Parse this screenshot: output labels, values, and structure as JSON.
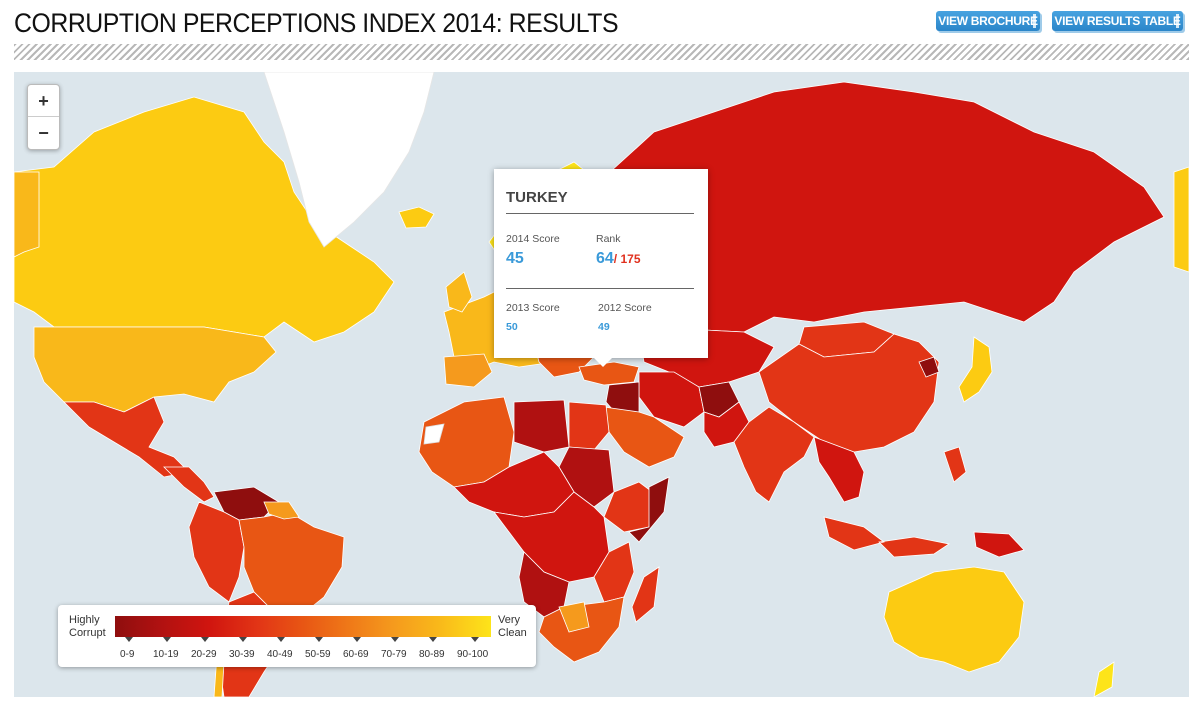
{
  "header": {
    "title": "CORRUPTION PERCEPTIONS INDEX 2014: RESULTS",
    "brochure_button": "VIEW BROCHURE",
    "results_table_button": "VIEW RESULTS TABLE"
  },
  "zoom": {
    "in_label": "+",
    "out_label": "−"
  },
  "popup": {
    "country": "TURKEY",
    "score_2014_label": "2014 Score",
    "score_2014": "45",
    "rank_label": "Rank",
    "rank": "64",
    "rank_total": "/ 175",
    "score_2013_label": "2013 Score",
    "score_2013": "50",
    "score_2012_label": "2012 Score",
    "score_2012": "49"
  },
  "legend": {
    "left_label_1": "Highly",
    "left_label_2": "Corrupt",
    "right_label_1": "Very",
    "right_label_2": "Clean",
    "ranges": [
      "0-9",
      "10-19",
      "20-29",
      "30-39",
      "40-49",
      "50-59",
      "60-69",
      "70-79",
      "80-89",
      "90-100"
    ]
  },
  "colors": {
    "ocean": "#dce6ec",
    "greenland": "#ffffff",
    "band_0_9": "#8f0e0e",
    "band_10_19": "#b01111",
    "band_20_29": "#d0150f",
    "band_30_39": "#e23516",
    "band_40_49": "#e85614",
    "band_50_59": "#ef7818",
    "band_60_69": "#f59a1d",
    "band_70_79": "#f9b81a",
    "band_80_89": "#fccb12",
    "band_90_100": "#fde41a",
    "accent_blue": "#3a9ad9"
  }
}
